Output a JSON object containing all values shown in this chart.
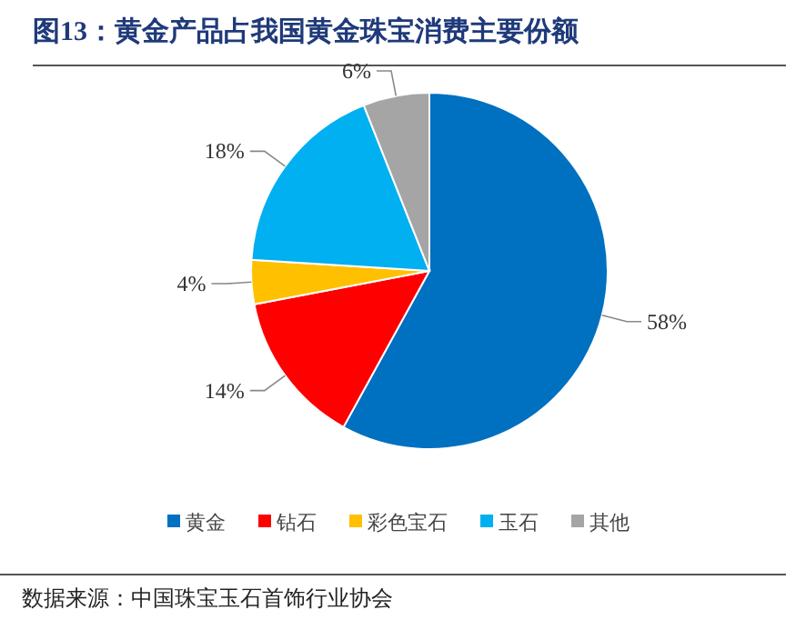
{
  "chart_data": {
    "type": "pie",
    "title": "图13：黄金产品占我国黄金珠宝消费主要份额",
    "categories": [
      "黄金",
      "钻石",
      "彩色宝石",
      "玉石",
      "其他"
    ],
    "values": [
      58,
      14,
      4,
      18,
      6
    ],
    "colors": [
      "#0070c0",
      "#ff0000",
      "#ffc000",
      "#00b0f0",
      "#a5a5a5"
    ],
    "value_labels": [
      "58%",
      "14%",
      "4%",
      "18%",
      "6%"
    ],
    "legend": "bottom",
    "annotations": [
      "数据来源：中国珠宝玉石首饰行业协会"
    ]
  }
}
